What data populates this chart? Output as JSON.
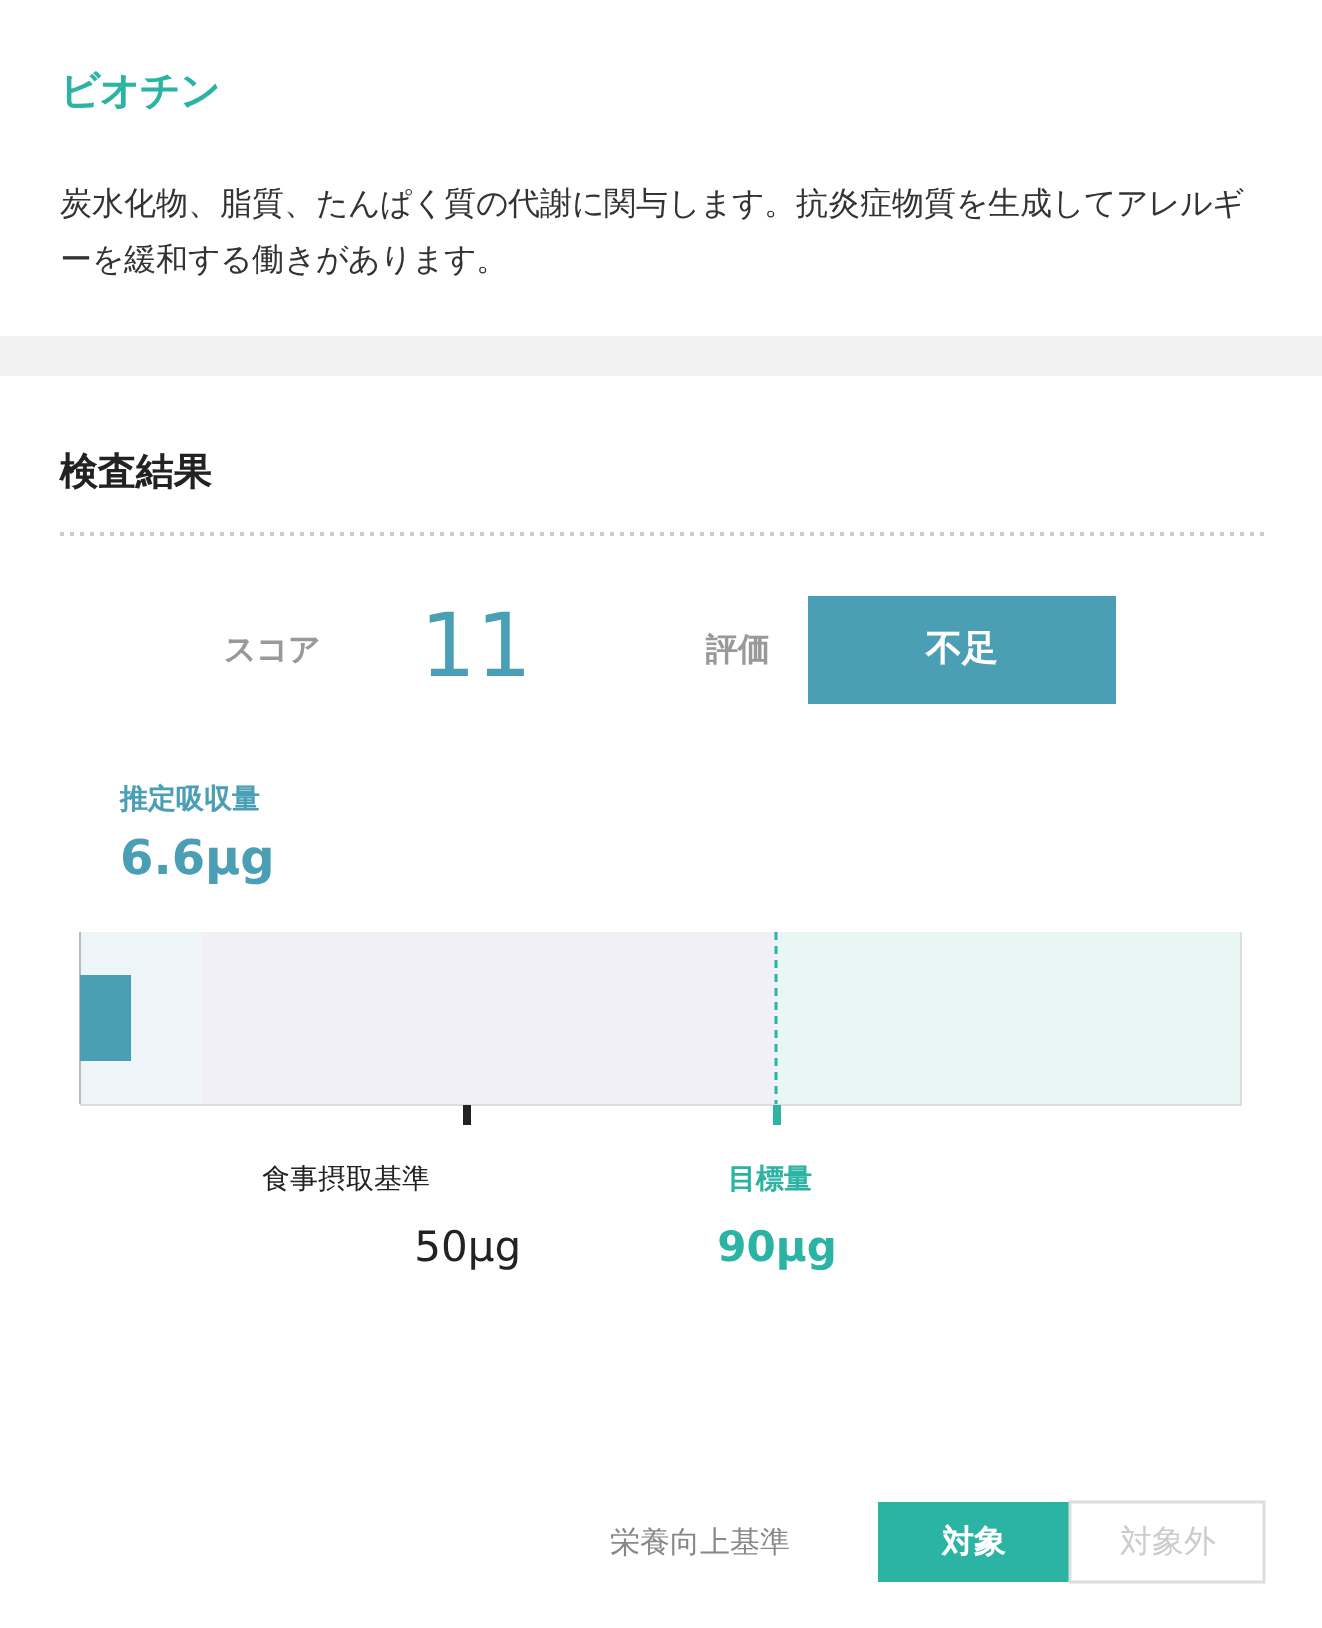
{
  "chart_data": {
    "type": "bar",
    "orientation": "horizontal",
    "title": "ビオチン",
    "subtitle": "炭水化物、脂質、たんぱく質の代謝に関与します。抗炎症物質を生成してアレルギーを緩和する働きがあります。",
    "categories": [
      null
    ],
    "series": [
      {
        "name": "推定吸収量",
        "color": "#4a9fb5",
        "values": [
          6.6
        ]
      }
    ],
    "value_labels": [
      "6.6μg"
    ],
    "xlim": [
      0,
      150
    ],
    "xticks": [
      {
        "value": 50,
        "label": "50μg"
      },
      {
        "value": 90,
        "label": "90μg"
      }
    ],
    "tick_labels": "x",
    "ref_lines": [
      {
        "axis": "x",
        "value": 90,
        "label": "目標量",
        "color": "#2bb3a3",
        "line_style": "dashed"
      }
    ],
    "bands": [
      {
        "axis": "x",
        "from": 0,
        "to": 15.7,
        "color": "#eef5f8"
      },
      {
        "axis": "x",
        "from": 15.7,
        "to": 90,
        "color": "#f1f0f7"
      },
      {
        "axis": "x",
        "from": 90,
        "to": 150,
        "color": "#e8f7f4"
      }
    ],
    "annotations": [
      "食事摂取基準",
      "検査結果",
      "スコア",
      "11",
      "評価",
      "不足",
      "栄養向上基準",
      "対象",
      "対象外"
    ]
  }
}
